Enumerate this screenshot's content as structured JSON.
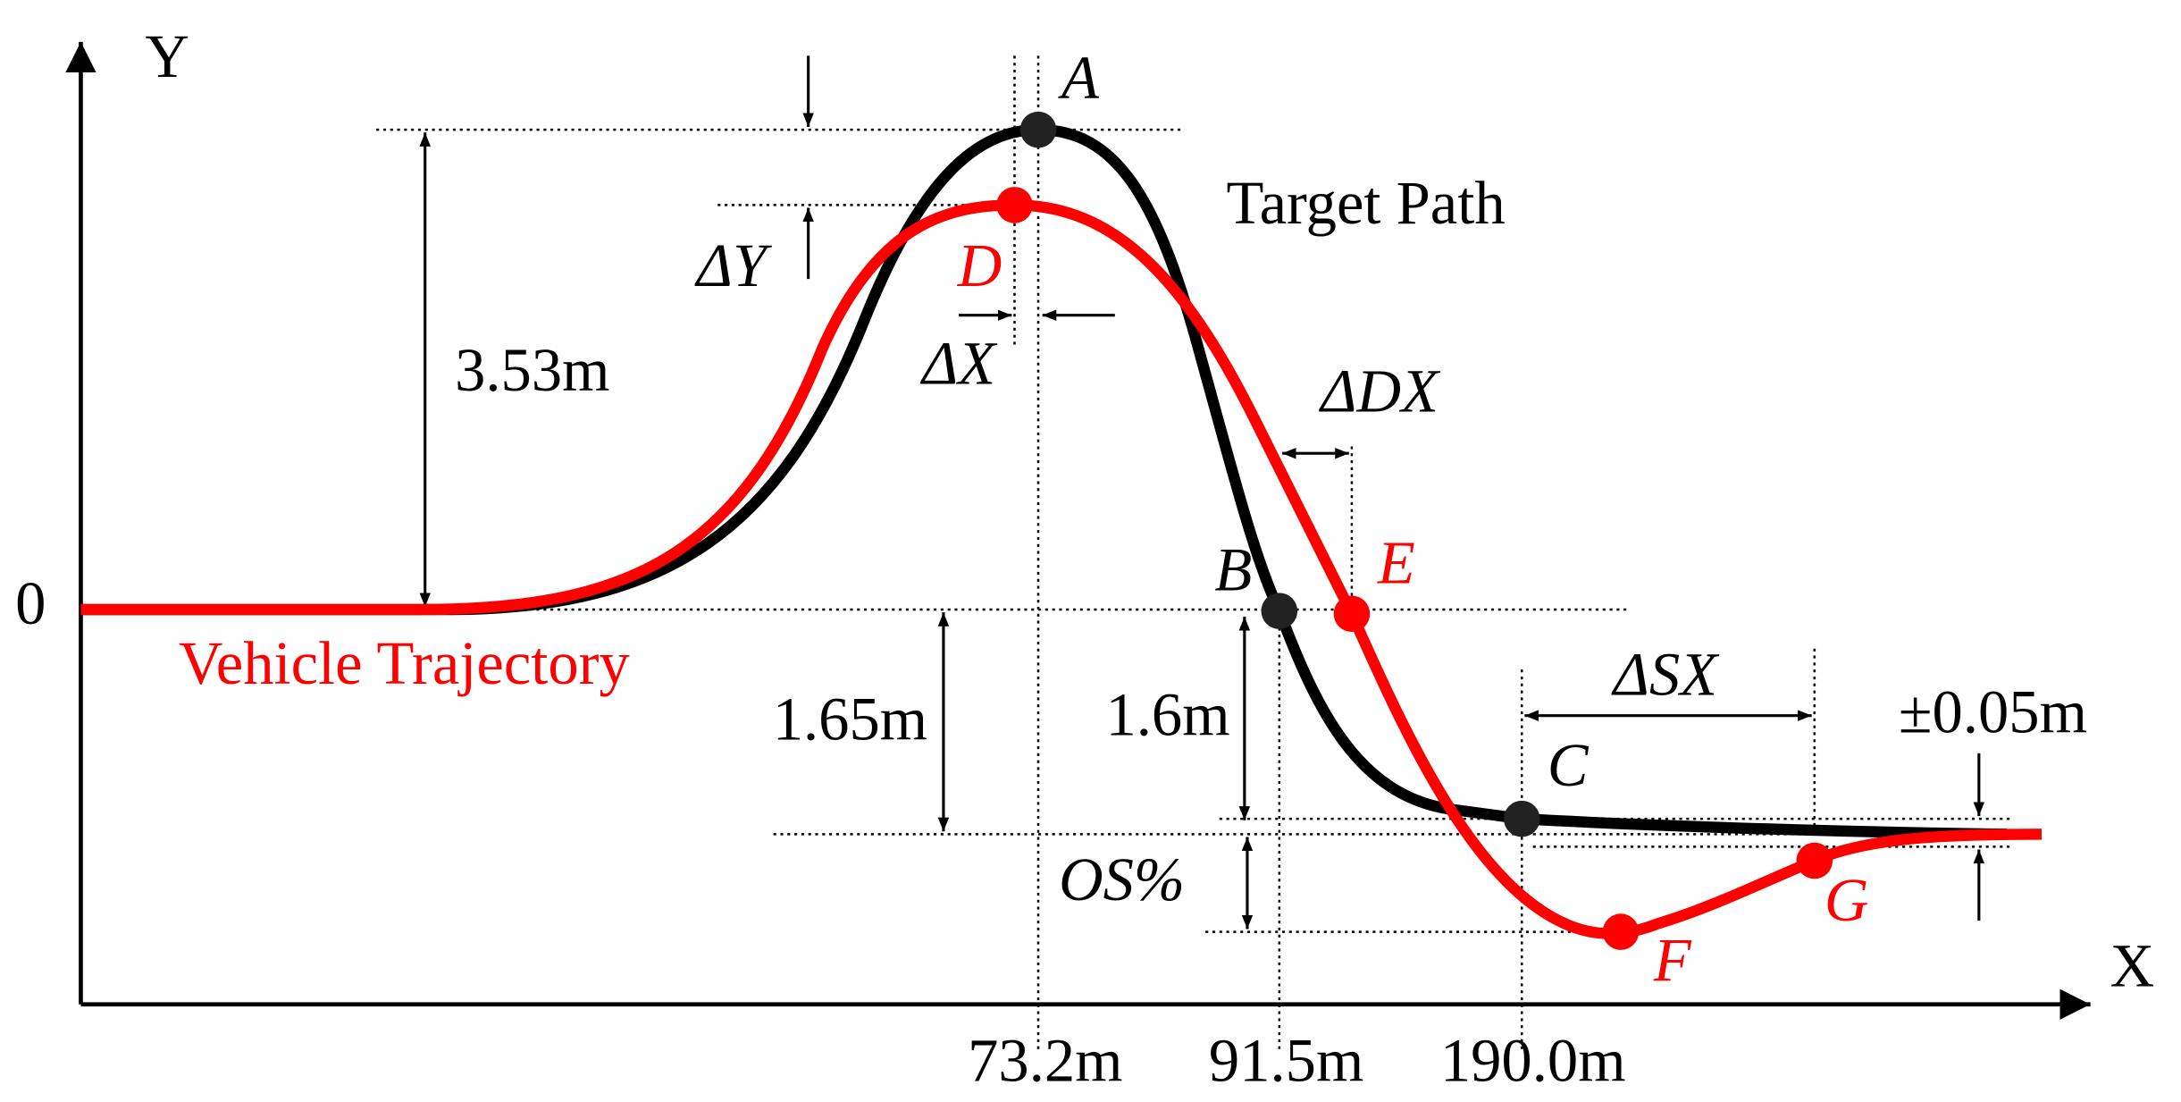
{
  "axes": {
    "y_label": "Y",
    "x_label": "X",
    "origin": "0"
  },
  "curves": {
    "target": "Target Path",
    "vehicle": "Vehicle Trajectory"
  },
  "points": {
    "A": "A",
    "B": "B",
    "C": "C",
    "D": "D",
    "E": "E",
    "F": "F",
    "G": "G"
  },
  "dimensions": {
    "peak": "3.53m",
    "settle_left": "1.65m",
    "settle_right": "1.6m",
    "tolerance": "±0.05m",
    "delta_y": "ΔY",
    "delta_x": "ΔX",
    "delta_dx": "ΔDX",
    "delta_sx": "ΔSX",
    "overshoot": "OS%"
  },
  "x_marks": {
    "a": "73.2m",
    "b": "91.5m",
    "c": "190.0m"
  }
}
